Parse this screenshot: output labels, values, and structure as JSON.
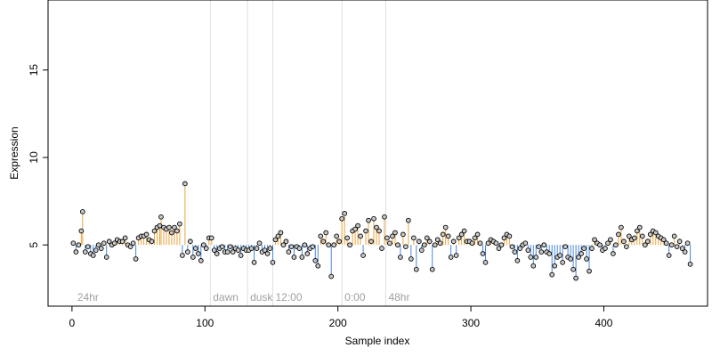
{
  "chart_data": {
    "type": "scatter",
    "title": "",
    "xlabel": "Sample index",
    "ylabel": "Expression",
    "xlim": [
      -18,
      478
    ],
    "ylim": [
      1.5,
      19
    ],
    "xticks": [
      0,
      100,
      200,
      300,
      400
    ],
    "yticks": [
      5,
      10,
      15
    ],
    "grid": false,
    "baseline": 5,
    "colors": {
      "above": "#E8A541",
      "below": "#4A86D6",
      "point_fill": "#C8C8C8",
      "point_edge": "#000000",
      "event_line": "#E0E0E0",
      "event_text": "#A0A0A0"
    },
    "event_lines": [
      {
        "x": 104,
        "label": "dawn"
      },
      {
        "x": 132,
        "label": "dusk"
      },
      {
        "x": 151,
        "label": "12:00"
      },
      {
        "x": 203,
        "label": "0:00"
      },
      {
        "x": 236,
        "label": "48hr"
      }
    ],
    "start_label": {
      "x": 2,
      "label": "24hr"
    },
    "points": [
      [
        1,
        5.1
      ],
      [
        3,
        4.6
      ],
      [
        5,
        5.0
      ],
      [
        7,
        5.8
      ],
      [
        8,
        6.9
      ],
      [
        10,
        4.6
      ],
      [
        12,
        4.9
      ],
      [
        14,
        4.5
      ],
      [
        16,
        4.4
      ],
      [
        18,
        4.7
      ],
      [
        20,
        5.0
      ],
      [
        22,
        4.8
      ],
      [
        24,
        5.1
      ],
      [
        26,
        4.3
      ],
      [
        28,
        5.2
      ],
      [
        30,
        5.0
      ],
      [
        32,
        5.1
      ],
      [
        34,
        5.3
      ],
      [
        36,
        5.2
      ],
      [
        38,
        5.2
      ],
      [
        40,
        5.4
      ],
      [
        42,
        5.0
      ],
      [
        44,
        4.9
      ],
      [
        46,
        5.1
      ],
      [
        48,
        4.2
      ],
      [
        50,
        5.4
      ],
      [
        52,
        5.5
      ],
      [
        54,
        5.5
      ],
      [
        56,
        5.6
      ],
      [
        58,
        5.3
      ],
      [
        60,
        5.2
      ],
      [
        62,
        5.8
      ],
      [
        64,
        6.0
      ],
      [
        66,
        6.1
      ],
      [
        67,
        6.6
      ],
      [
        69,
        6.0
      ],
      [
        71,
        5.9
      ],
      [
        73,
        6.0
      ],
      [
        75,
        5.7
      ],
      [
        77,
        6.0
      ],
      [
        79,
        5.8
      ],
      [
        81,
        6.2
      ],
      [
        83,
        4.4
      ],
      [
        85,
        8.5
      ],
      [
        87,
        4.6
      ],
      [
        89,
        5.2
      ],
      [
        91,
        4.3
      ],
      [
        93,
        4.8
      ],
      [
        95,
        4.5
      ],
      [
        97,
        4.1
      ],
      [
        99,
        5.0
      ],
      [
        101,
        4.8
      ],
      [
        103,
        5.4
      ],
      [
        105,
        5.4
      ],
      [
        107,
        4.7
      ],
      [
        109,
        4.5
      ],
      [
        111,
        4.8
      ],
      [
        113,
        4.9
      ],
      [
        115,
        4.6
      ],
      [
        117,
        4.6
      ],
      [
        119,
        4.9
      ],
      [
        121,
        4.6
      ],
      [
        123,
        4.8
      ],
      [
        125,
        4.7
      ],
      [
        127,
        4.4
      ],
      [
        129,
        4.8
      ],
      [
        131,
        4.7
      ],
      [
        133,
        4.7
      ],
      [
        135,
        4.8
      ],
      [
        137,
        4.0
      ],
      [
        139,
        4.8
      ],
      [
        141,
        5.1
      ],
      [
        143,
        4.6
      ],
      [
        145,
        4.7
      ],
      [
        147,
        4.5
      ],
      [
        149,
        4.8
      ],
      [
        151,
        4.0
      ],
      [
        153,
        5.3
      ],
      [
        155,
        5.5
      ],
      [
        157,
        5.7
      ],
      [
        159,
        5.0
      ],
      [
        161,
        5.2
      ],
      [
        163,
        4.6
      ],
      [
        165,
        4.9
      ],
      [
        167,
        4.3
      ],
      [
        169,
        4.9
      ],
      [
        171,
        4.8
      ],
      [
        173,
        4.3
      ],
      [
        175,
        5.0
      ],
      [
        177,
        4.5
      ],
      [
        179,
        4.8
      ],
      [
        181,
        4.9
      ],
      [
        183,
        4.1
      ],
      [
        185,
        3.8
      ],
      [
        187,
        5.5
      ],
      [
        189,
        5.2
      ],
      [
        191,
        5.7
      ],
      [
        193,
        5.0
      ],
      [
        195,
        3.2
      ],
      [
        197,
        5.0
      ],
      [
        199,
        5.5
      ],
      [
        201,
        5.2
      ],
      [
        203,
        6.5
      ],
      [
        205,
        6.8
      ],
      [
        207,
        5.4
      ],
      [
        209,
        5.0
      ],
      [
        211,
        5.8
      ],
      [
        213,
        5.9
      ],
      [
        215,
        6.1
      ],
      [
        217,
        5.5
      ],
      [
        219,
        4.4
      ],
      [
        221,
        5.8
      ],
      [
        223,
        6.4
      ],
      [
        225,
        5.2
      ],
      [
        227,
        6.5
      ],
      [
        229,
        6.0
      ],
      [
        231,
        5.8
      ],
      [
        233,
        4.8
      ],
      [
        235,
        6.6
      ],
      [
        237,
        5.4
      ],
      [
        239,
        5.1
      ],
      [
        241,
        5.5
      ],
      [
        243,
        5.7
      ],
      [
        245,
        5.0
      ],
      [
        247,
        4.3
      ],
      [
        249,
        5.6
      ],
      [
        251,
        4.9
      ],
      [
        253,
        6.4
      ],
      [
        255,
        4.2
      ],
      [
        257,
        5.4
      ],
      [
        259,
        3.6
      ],
      [
        261,
        5.2
      ],
      [
        263,
        4.7
      ],
      [
        265,
        5.0
      ],
      [
        267,
        5.4
      ],
      [
        269,
        5.2
      ],
      [
        271,
        3.6
      ],
      [
        273,
        5.0
      ],
      [
        275,
        5.3
      ],
      [
        277,
        5.1
      ],
      [
        279,
        5.6
      ],
      [
        281,
        6.0
      ],
      [
        283,
        5.5
      ],
      [
        285,
        4.3
      ],
      [
        287,
        5.2
      ],
      [
        289,
        4.4
      ],
      [
        291,
        5.4
      ],
      [
        293,
        5.6
      ],
      [
        295,
        5.8
      ],
      [
        297,
        5.2
      ],
      [
        299,
        5.2
      ],
      [
        301,
        5.1
      ],
      [
        303,
        5.4
      ],
      [
        305,
        5.6
      ],
      [
        307,
        5.1
      ],
      [
        309,
        4.5
      ],
      [
        311,
        4.0
      ],
      [
        313,
        5.1
      ],
      [
        315,
        5.3
      ],
      [
        317,
        5.2
      ],
      [
        319,
        5.1
      ],
      [
        321,
        4.8
      ],
      [
        323,
        5.0
      ],
      [
        325,
        5.4
      ],
      [
        327,
        5.6
      ],
      [
        329,
        5.5
      ],
      [
        331,
        4.9
      ],
      [
        333,
        4.6
      ],
      [
        335,
        4.1
      ],
      [
        337,
        4.8
      ],
      [
        339,
        5.0
      ],
      [
        341,
        5.1
      ],
      [
        343,
        4.7
      ],
      [
        345,
        4.3
      ],
      [
        347,
        3.8
      ],
      [
        349,
        4.3
      ],
      [
        351,
        4.9
      ],
      [
        353,
        4.6
      ],
      [
        355,
        5.0
      ],
      [
        357,
        4.6
      ],
      [
        359,
        4.5
      ],
      [
        361,
        3.3
      ],
      [
        363,
        3.8
      ],
      [
        365,
        4.3
      ],
      [
        367,
        4.4
      ],
      [
        369,
        4.0
      ],
      [
        371,
        4.9
      ],
      [
        373,
        4.3
      ],
      [
        375,
        4.2
      ],
      [
        377,
        3.6
      ],
      [
        379,
        3.1
      ],
      [
        381,
        4.3
      ],
      [
        383,
        4.5
      ],
      [
        385,
        4.8
      ],
      [
        387,
        4.2
      ],
      [
        389,
        3.5
      ],
      [
        391,
        4.8
      ],
      [
        393,
        5.3
      ],
      [
        395,
        5.1
      ],
      [
        397,
        5.0
      ],
      [
        399,
        4.7
      ],
      [
        401,
        4.8
      ],
      [
        403,
        5.1
      ],
      [
        405,
        5.3
      ],
      [
        407,
        4.5
      ],
      [
        409,
        5.0
      ],
      [
        411,
        5.6
      ],
      [
        413,
        6.0
      ],
      [
        415,
        5.2
      ],
      [
        417,
        4.9
      ],
      [
        419,
        5.5
      ],
      [
        421,
        5.3
      ],
      [
        423,
        5.4
      ],
      [
        425,
        5.8
      ],
      [
        427,
        6.0
      ],
      [
        429,
        5.5
      ],
      [
        431,
        5.0
      ],
      [
        433,
        5.2
      ],
      [
        435,
        5.6
      ],
      [
        437,
        5.8
      ],
      [
        439,
        5.7
      ],
      [
        441,
        5.5
      ],
      [
        443,
        5.4
      ],
      [
        445,
        5.3
      ],
      [
        447,
        5.1
      ],
      [
        449,
        4.4
      ],
      [
        451,
        5.0
      ],
      [
        453,
        5.5
      ],
      [
        455,
        4.9
      ],
      [
        457,
        5.2
      ],
      [
        459,
        4.8
      ],
      [
        461,
        4.6
      ],
      [
        463,
        5.1
      ],
      [
        465,
        3.9
      ]
    ]
  }
}
